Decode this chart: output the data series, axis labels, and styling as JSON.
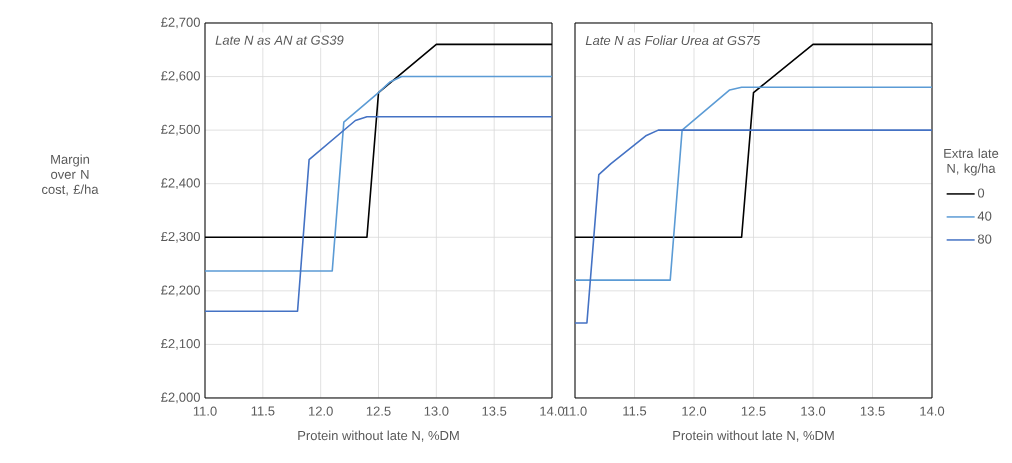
{
  "chart_data": [
    {
      "type": "line",
      "title": "Late N as AN at GS39",
      "xlabel": "Protein without late N, %DM",
      "ylabel": "Margin over N cost, £/ha",
      "xlim": [
        11,
        14
      ],
      "xticks": [
        {
          "value": 11,
          "label": "11.0"
        },
        {
          "value": 11.5,
          "label": "11.5"
        },
        {
          "value": 12,
          "label": "12.0"
        },
        {
          "value": 12.5,
          "label": "12.5"
        },
        {
          "value": 13,
          "label": "13.0"
        },
        {
          "value": 13.5,
          "label": "13.5"
        },
        {
          "value": 14,
          "label": "14.0"
        }
      ],
      "ylim": [
        2000,
        2700
      ],
      "yticks": [
        {
          "value": 2000,
          "label": "£2,000"
        },
        {
          "value": 2100,
          "label": "£2,100"
        },
        {
          "value": 2200,
          "label": "£2,200"
        },
        {
          "value": 2300,
          "label": "£2,300"
        },
        {
          "value": 2400,
          "label": "£2,400"
        },
        {
          "value": 2500,
          "label": "£2,500"
        },
        {
          "value": 2600,
          "label": "£2,600"
        },
        {
          "value": 2700,
          "label": "£2,700"
        }
      ],
      "grid": true,
      "legend": false,
      "series": [
        {
          "color": "#000000",
          "x": [
            11,
            12.4,
            12.5,
            13,
            14
          ],
          "values": [
            2300,
            2300,
            2570,
            2660,
            2660
          ]
        },
        {
          "color": "#5b9bd5",
          "x": [
            11,
            12.1,
            12.2,
            12.5,
            12.6,
            12.7,
            14
          ],
          "values": [
            2237,
            2237,
            2515,
            2570,
            2590,
            2600,
            2600
          ]
        },
        {
          "color": "#4472c4",
          "x": [
            11,
            11.8,
            11.9,
            12.3,
            12.4,
            14
          ],
          "values": [
            2162,
            2162,
            2445,
            2518,
            2525,
            2525
          ]
        }
      ]
    },
    {
      "type": "line",
      "title": "Late N as Foliar Urea at GS75",
      "xlabel": "Protein without late N, %DM",
      "legend_title": "Extra late N, kg/ha",
      "xlim": [
        11,
        14
      ],
      "xticks": [
        {
          "value": 11,
          "label": "11.0"
        },
        {
          "value": 11.5,
          "label": "11.5"
        },
        {
          "value": 12,
          "label": "12.0"
        },
        {
          "value": 12.5,
          "label": "12.5"
        },
        {
          "value": 13,
          "label": "13.0"
        },
        {
          "value": 13.5,
          "label": "13.5"
        },
        {
          "value": 14,
          "label": "14.0"
        }
      ],
      "ylim": [
        2000,
        2700
      ],
      "yticks": [
        2000,
        2100,
        2200,
        2300,
        2400,
        2500,
        2600,
        2700
      ],
      "tick_labels": "x",
      "grid": true,
      "legend": "right",
      "series": [
        {
          "name": "0",
          "color": "#000000",
          "x": [
            11,
            12.4,
            12.5,
            13,
            14
          ],
          "values": [
            2300,
            2300,
            2570,
            2660,
            2660
          ]
        },
        {
          "name": "40",
          "color": "#5b9bd5",
          "x": [
            11,
            11.8,
            11.9,
            12.3,
            12.4,
            14
          ],
          "values": [
            2220,
            2220,
            2500,
            2575,
            2580,
            2580
          ]
        },
        {
          "name": "80",
          "color": "#4472c4",
          "x": [
            11,
            11.1,
            11.2,
            11.3,
            11.6,
            11.7,
            14
          ],
          "values": [
            2140,
            2140,
            2417,
            2437,
            2490,
            2500,
            2500
          ]
        }
      ]
    }
  ]
}
